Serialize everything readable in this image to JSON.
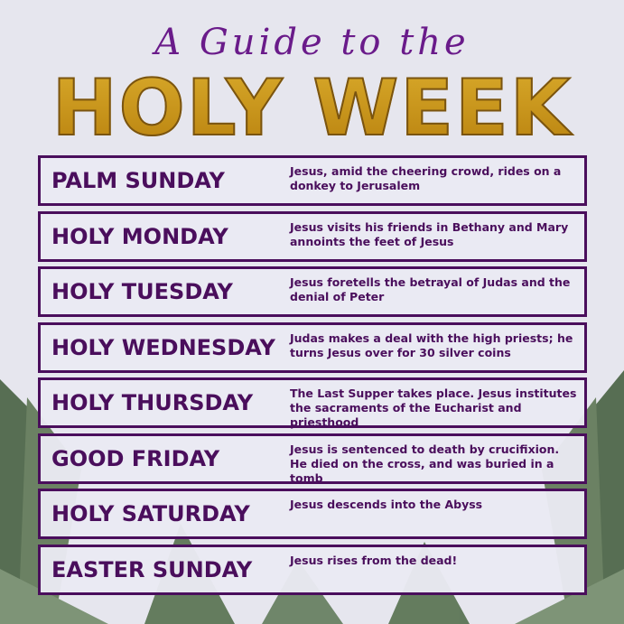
{
  "header": {
    "subtitle": "A Guide to the",
    "title": "HOLY WEEK"
  },
  "colors": {
    "background": "#e6e6ee",
    "accent_purple": "#4a0e5c",
    "subtitle_purple": "#6a1b8a",
    "gold": "#c8961e",
    "palm_green": "#3f5a38"
  },
  "days": [
    {
      "name": "PALM SUNDAY",
      "description": "Jesus, amid the cheering crowd, rides on a donkey to Jerusalem"
    },
    {
      "name": "HOLY MONDAY",
      "description": "Jesus visits his friends in Bethany and Mary annoints the feet of Jesus"
    },
    {
      "name": "HOLY TUESDAY",
      "description": "Jesus foretells the betrayal of Judas and the denial of Peter"
    },
    {
      "name": "HOLY WEDNESDAY",
      "description": "Judas makes a deal with the high priests; he turns Jesus over for 30 silver coins"
    },
    {
      "name": "HOLY THURSDAY",
      "description": "The Last Supper takes place. Jesus institutes the sacraments of the Eucharist and priesthood"
    },
    {
      "name": "GOOD FRIDAY",
      "description": "Jesus is sentenced to death by crucifixion. He died on the cross, and was buried in a tomb"
    },
    {
      "name": "HOLY SATURDAY",
      "description": "Jesus descends into the Abyss"
    },
    {
      "name": "EASTER SUNDAY",
      "description": "Jesus rises from the dead!"
    }
  ]
}
